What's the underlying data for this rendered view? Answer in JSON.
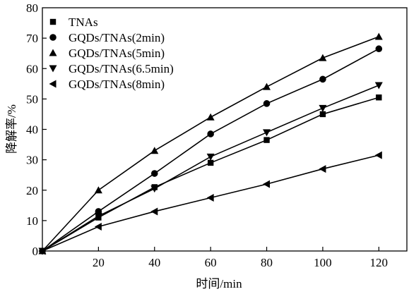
{
  "chart_data": {
    "type": "line",
    "title": "",
    "xlabel": "时间/min",
    "ylabel": "降解率/%",
    "xlim": [
      0,
      130
    ],
    "ylim": [
      0,
      80
    ],
    "xticks": [
      20,
      40,
      60,
      80,
      100,
      120
    ],
    "yticks": [
      0,
      10,
      20,
      30,
      40,
      50,
      60,
      70,
      80
    ],
    "origin_label": "0",
    "grid": false,
    "legend_position": "top-left",
    "x": [
      0,
      20,
      40,
      60,
      80,
      100,
      120
    ],
    "series": [
      {
        "name": "TNAs",
        "marker": "square",
        "values": [
          0,
          11,
          21,
          29,
          36.5,
          45,
          50.5
        ]
      },
      {
        "name": "GQDs/TNAs(2min)",
        "marker": "circle",
        "values": [
          0,
          13,
          25.5,
          38.5,
          48.5,
          56.5,
          66.5
        ]
      },
      {
        "name": "GQDs/TNAs(5min)",
        "marker": "triangle-up",
        "values": [
          0,
          20,
          33,
          44,
          54,
          63.5,
          70.5
        ]
      },
      {
        "name": "GQDs/TNAs(6.5min)",
        "marker": "triangle-down",
        "values": [
          0,
          11.5,
          20.5,
          31,
          39,
          47,
          54.5
        ]
      },
      {
        "name": "GQDs/TNAs(8min)",
        "marker": "triangle-left",
        "values": [
          0,
          8,
          13,
          17.5,
          22,
          27,
          31.5
        ]
      }
    ]
  }
}
